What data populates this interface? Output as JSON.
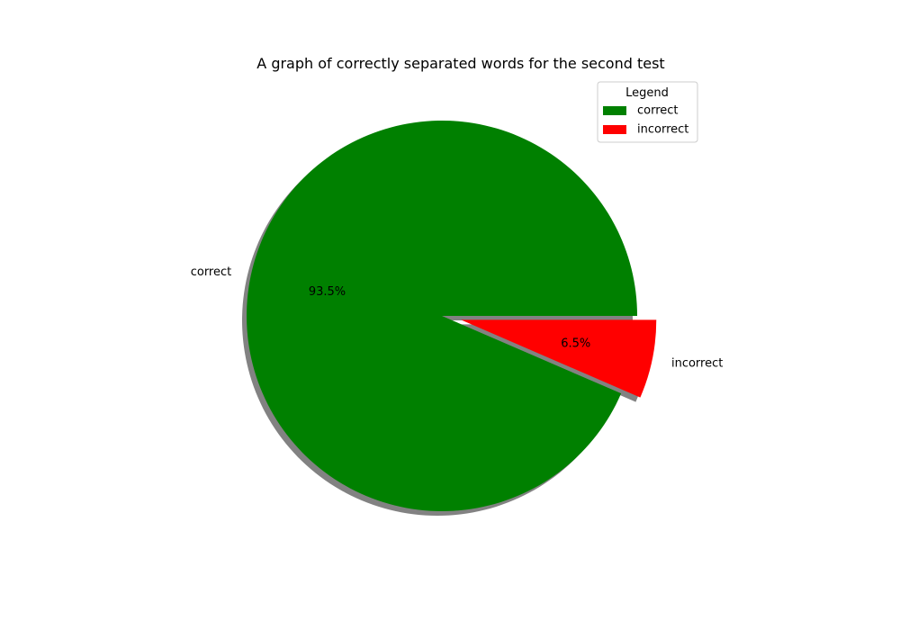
{
  "chart_data": {
    "type": "pie",
    "title": "A graph of correctly separated words for the second test",
    "slices": [
      {
        "label": "correct",
        "value": 93.5,
        "pct_label": "93.5%",
        "color": "#008000",
        "explode": false
      },
      {
        "label": "incorrect",
        "value": 6.5,
        "pct_label": "6.5%",
        "color": "#ff0000",
        "explode": true
      }
    ],
    "start_angle_deg": 0,
    "shadow": true,
    "legend": {
      "title": "Legend",
      "placement": "upper-right",
      "entries": [
        "correct",
        "incorrect"
      ]
    }
  }
}
